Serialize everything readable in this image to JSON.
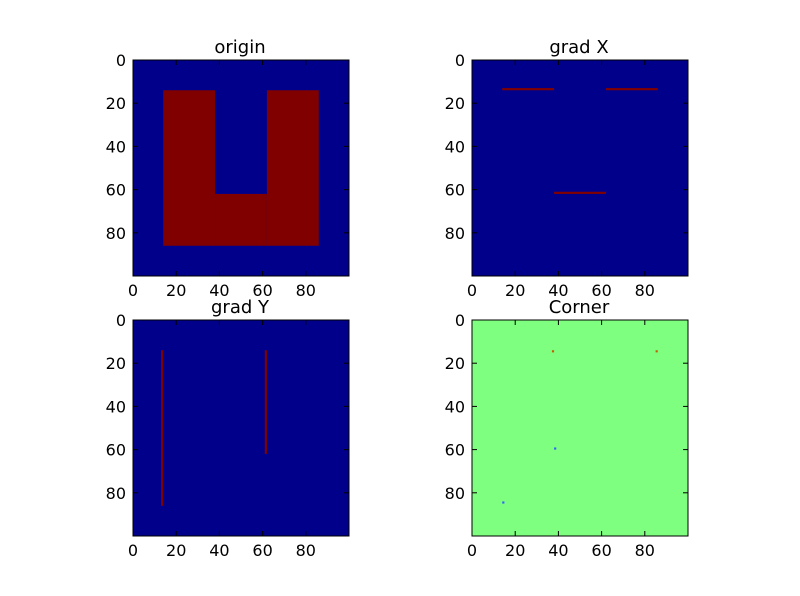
{
  "figure": {
    "background": "#ffffff"
  },
  "chart_data": [
    {
      "type": "heatmap",
      "title": "origin",
      "xlim": [
        0,
        100
      ],
      "ylim": [
        100,
        0
      ],
      "xticks": [
        "0",
        "20",
        "40",
        "60",
        "80"
      ],
      "yticks": [
        "0",
        "20",
        "40",
        "60",
        "80"
      ],
      "background_color": "#00008b",
      "mark_color": "#800000",
      "cells": [
        {
          "x0": 14,
          "x1": 38,
          "y0": 14,
          "y1": 86,
          "color": "#800000"
        },
        {
          "x0": 62,
          "x1": 86,
          "y0": 14,
          "y1": 86,
          "color": "#800000"
        },
        {
          "x0": 38,
          "x1": 62,
          "y0": 62,
          "y1": 86,
          "color": "#800000"
        }
      ]
    },
    {
      "type": "heatmap",
      "title": "grad X",
      "xlim": [
        0,
        100
      ],
      "ylim": [
        100,
        0
      ],
      "xticks": [
        "0",
        "20",
        "40",
        "60",
        "80"
      ],
      "yticks": [
        "0",
        "20",
        "40",
        "60",
        "80"
      ],
      "background_color": "#00008b",
      "mark_color": "#800000",
      "cells": [
        {
          "x0": 14,
          "x1": 38,
          "y0": 13,
          "y1": 14,
          "color": "#800000"
        },
        {
          "x0": 62,
          "x1": 86,
          "y0": 13,
          "y1": 14,
          "color": "#800000"
        },
        {
          "x0": 38,
          "x1": 62,
          "y0": 61,
          "y1": 62,
          "color": "#800000"
        }
      ]
    },
    {
      "type": "heatmap",
      "title": "grad Y",
      "xlim": [
        0,
        100
      ],
      "ylim": [
        100,
        0
      ],
      "xticks": [
        "0",
        "20",
        "40",
        "60",
        "80"
      ],
      "yticks": [
        "0",
        "20",
        "40",
        "60",
        "80"
      ],
      "background_color": "#00008b",
      "mark_color": "#800000",
      "cells": [
        {
          "x0": 13,
          "x1": 14,
          "y0": 14,
          "y1": 86,
          "color": "#800000"
        },
        {
          "x0": 61,
          "x1": 62,
          "y0": 14,
          "y1": 62,
          "color": "#800000"
        }
      ]
    },
    {
      "type": "heatmap",
      "title": "Corner",
      "xlim": [
        0,
        100
      ],
      "ylim": [
        100,
        0
      ],
      "xticks": [
        "0",
        "20",
        "40",
        "60",
        "80"
      ],
      "yticks": [
        "0",
        "20",
        "40",
        "60",
        "80"
      ],
      "background_color": "#7fff7f",
      "cells": [
        {
          "x0": 37,
          "x1": 38,
          "y0": 14,
          "y1": 15,
          "color": "#c06000"
        },
        {
          "x0": 85,
          "x1": 86,
          "y0": 14,
          "y1": 15,
          "color": "#c06000"
        },
        {
          "x0": 38,
          "x1": 39,
          "y0": 59,
          "y1": 60,
          "color": "#3060ff"
        },
        {
          "x0": 14,
          "x1": 15,
          "y0": 84,
          "y1": 85,
          "color": "#3060ff"
        }
      ]
    }
  ]
}
